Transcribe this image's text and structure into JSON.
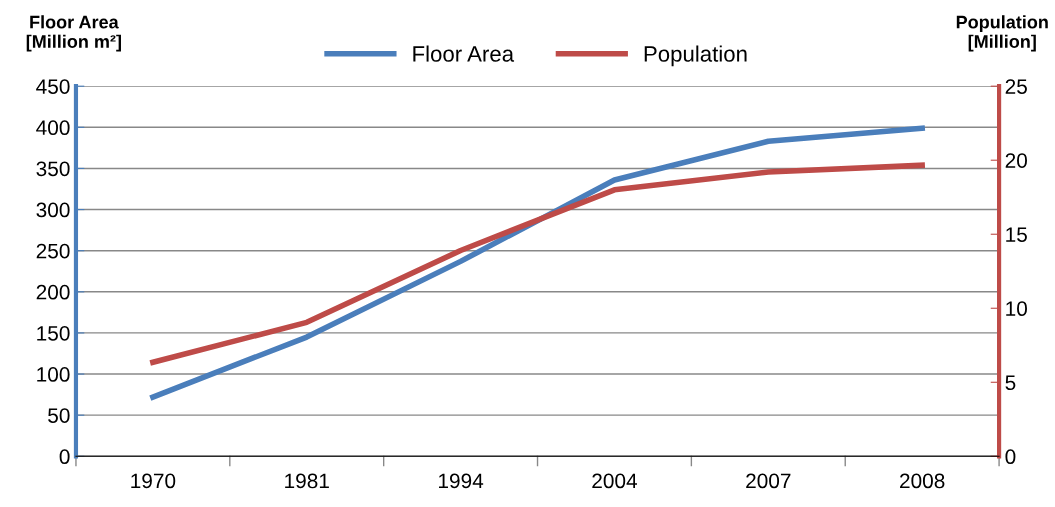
{
  "chart_data": {
    "type": "line",
    "ylabel": "Floor Area\n[Million m²]",
    "y2label": "Population\n[Million]",
    "categories": [
      "1970",
      "1981",
      "1994",
      "2004",
      "2007",
      "2008"
    ],
    "series": [
      {
        "name": "Floor Area",
        "color": "#4a7ebb",
        "values": [
          72,
          145,
          237,
          336,
          383,
          399
        ]
      },
      {
        "name": "Population",
        "color": "#be4b48",
        "axis": "y2",
        "values": [
          6.35,
          9.05,
          13.9,
          18.0,
          19.2,
          19.66
        ]
      }
    ],
    "ylim": [
      0,
      450
    ],
    "yticks": [
      0,
      50,
      100,
      150,
      200,
      250,
      300,
      350,
      400,
      450
    ],
    "y2lim": [
      0,
      25
    ],
    "y2ticks": [
      0,
      5,
      10,
      15,
      20,
      25
    ],
    "grid": "y",
    "legend": "top",
    "marker": "none",
    "line_style": "solid"
  }
}
